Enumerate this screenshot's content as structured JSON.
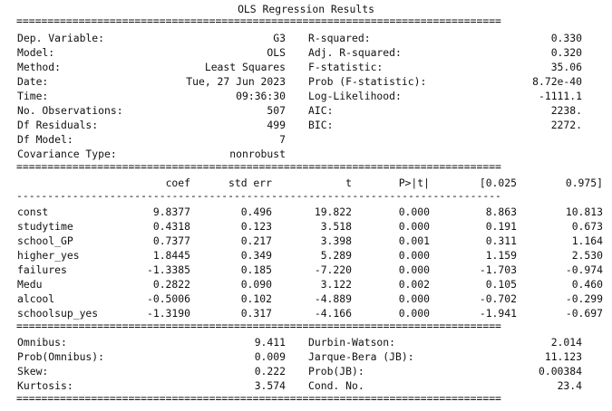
{
  "title": "OLS Regression Results",
  "rules": {
    "double": "==============================================================================",
    "single": "------------------------------------------------------------------------------"
  },
  "header": {
    "left": [
      {
        "label": "Dep. Variable:",
        "value": "G3"
      },
      {
        "label": "Model:",
        "value": "OLS"
      },
      {
        "label": "Method:",
        "value": "Least Squares"
      },
      {
        "label": "Date:",
        "value": "Tue, 27 Jun 2023"
      },
      {
        "label": "Time:",
        "value": "09:36:30"
      },
      {
        "label": "No. Observations:",
        "value": "507"
      },
      {
        "label": "Df Residuals:",
        "value": "499"
      },
      {
        "label": "Df Model:",
        "value": "7"
      },
      {
        "label": "Covariance Type:",
        "value": "nonrobust"
      }
    ],
    "right": [
      {
        "label": "R-squared:",
        "value": "0.330"
      },
      {
        "label": "Adj. R-squared:",
        "value": "0.320"
      },
      {
        "label": "F-statistic:",
        "value": "35.06"
      },
      {
        "label": "Prob (F-statistic):",
        "value": "8.72e-40"
      },
      {
        "label": "Log-Likelihood:",
        "value": "-1111.1"
      },
      {
        "label": "AIC:",
        "value": "2238."
      },
      {
        "label": "BIC:",
        "value": "2272."
      }
    ]
  },
  "coef_table": {
    "columns": [
      "coef",
      "std err",
      "t",
      "P>|t|",
      "[0.025",
      "0.975]"
    ],
    "rows": [
      [
        "const",
        "9.8377",
        "0.496",
        "19.822",
        "0.000",
        "8.863",
        "10.813"
      ],
      [
        "studytime",
        "0.4318",
        "0.123",
        "3.518",
        "0.000",
        "0.191",
        "0.673"
      ],
      [
        "school_GP",
        "0.7377",
        "0.217",
        "3.398",
        "0.001",
        "0.311",
        "1.164"
      ],
      [
        "higher_yes",
        "1.8445",
        "0.349",
        "5.289",
        "0.000",
        "1.159",
        "2.530"
      ],
      [
        "failures",
        "-1.3385",
        "0.185",
        "-7.220",
        "0.000",
        "-1.703",
        "-0.974"
      ],
      [
        "Medu",
        "0.2822",
        "0.090",
        "3.122",
        "0.002",
        "0.105",
        "0.460"
      ],
      [
        "alcool",
        "-0.5006",
        "0.102",
        "-4.889",
        "0.000",
        "-0.702",
        "-0.299"
      ],
      [
        "schoolsup_yes",
        "-1.3190",
        "0.317",
        "-4.166",
        "0.000",
        "-1.941",
        "-0.697"
      ]
    ]
  },
  "diagnostics": {
    "left": [
      {
        "label": "Omnibus:",
        "value": "9.411"
      },
      {
        "label": "Prob(Omnibus):",
        "value": "0.009"
      },
      {
        "label": "Skew:",
        "value": "0.222"
      },
      {
        "label": "Kurtosis:",
        "value": "3.574"
      }
    ],
    "right": [
      {
        "label": "Durbin-Watson:",
        "value": "2.014"
      },
      {
        "label": "Jarque-Bera (JB):",
        "value": "11.123"
      },
      {
        "label": "Prob(JB):",
        "value": "0.00384"
      },
      {
        "label": "Cond. No.",
        "value": "23.4"
      }
    ]
  }
}
